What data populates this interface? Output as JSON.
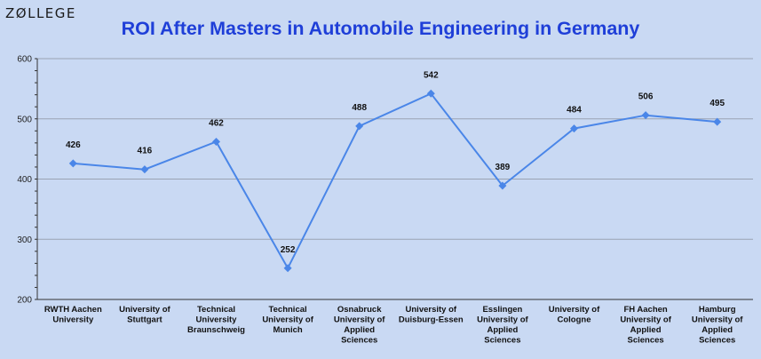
{
  "logo": "ZØLLEGE",
  "chart_data": {
    "type": "line",
    "title": "ROI After Masters in Automobile Engineering in Germany",
    "xlabel": "",
    "ylabel": "",
    "ylim": [
      200,
      600
    ],
    "yticks": [
      200,
      300,
      400,
      500,
      600
    ],
    "grid": true,
    "categories": [
      [
        "RWTH Aachen",
        "University"
      ],
      [
        "University of",
        "Stuttgart"
      ],
      [
        "Technical",
        "University",
        "Braunschweig"
      ],
      [
        "Technical",
        "University of",
        "Munich"
      ],
      [
        "Osnabruck",
        "University of",
        "Applied",
        "Sciences"
      ],
      [
        "University of",
        "Duisburg-Essen"
      ],
      [
        "Esslingen",
        "University of",
        "Applied",
        "Sciences"
      ],
      [
        "University of",
        "Cologne"
      ],
      [
        "FH Aachen",
        "University of",
        "Applied",
        "Sciences"
      ],
      [
        "Hamburg",
        "University of",
        "Applied",
        "Sciences"
      ]
    ],
    "series": [
      {
        "values": [
          426,
          416,
          462,
          252,
          488,
          542,
          389,
          484,
          506,
          495
        ],
        "color": "#4a86e8"
      }
    ]
  }
}
